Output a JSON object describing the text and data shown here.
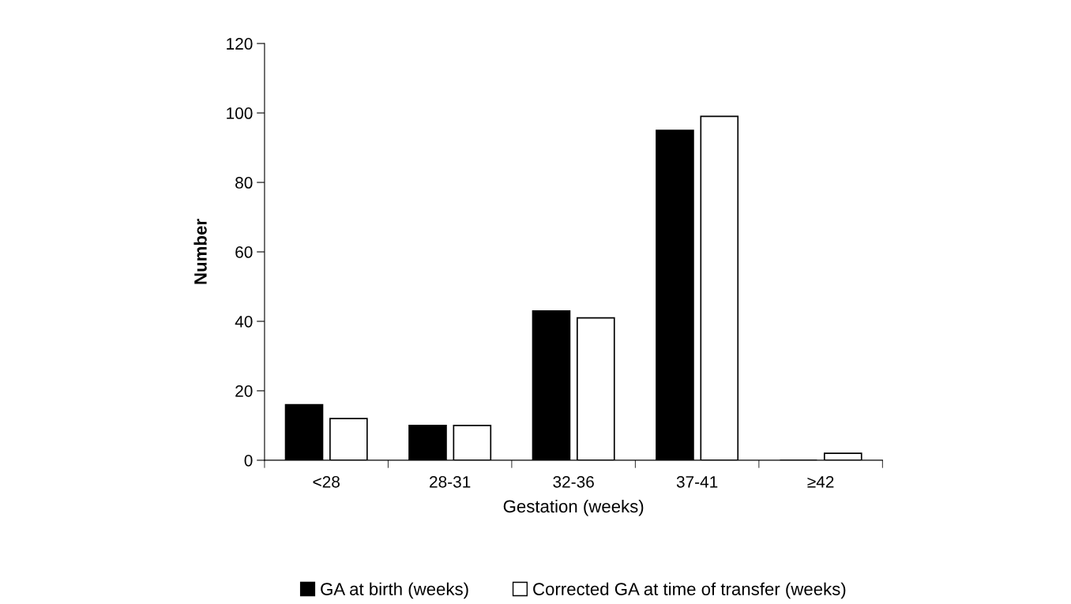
{
  "chart_data": {
    "type": "bar",
    "xlabel": "Gestation (weeks)",
    "ylabel": "Number",
    "categories": [
      "<28",
      "28-31",
      "32-36",
      "37-41",
      "≥42"
    ],
    "series": [
      {
        "name": "GA at birth (weeks)",
        "color": "#000000",
        "values": [
          16,
          10,
          43,
          95,
          0
        ]
      },
      {
        "name": "Corrected GA at time of transfer (weeks)",
        "color": "#ffffff",
        "values": [
          12,
          10,
          41,
          99,
          2
        ]
      }
    ],
    "ylim": [
      0,
      120
    ],
    "yticks": [
      0,
      20,
      40,
      60,
      80,
      100,
      120
    ],
    "grid": false,
    "legend": "bottom"
  }
}
